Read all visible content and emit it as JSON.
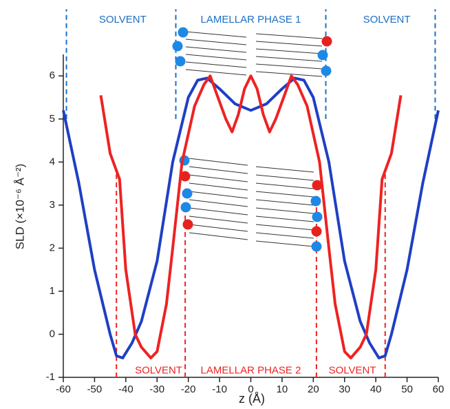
{
  "chart_data": {
    "type": "line",
    "xlabel": "z (Å)",
    "ylabel": "SLD (×10⁻⁶ Å⁻²)",
    "xlim": [
      -60,
      60
    ],
    "ylim": [
      -1,
      6.5
    ],
    "xticks": [
      -60,
      -50,
      -40,
      -30,
      -20,
      -10,
      0,
      10,
      20,
      30,
      40,
      50,
      60
    ],
    "yticks": [
      -1,
      0,
      1,
      2,
      3,
      4,
      5,
      6
    ],
    "series": [
      {
        "color": "#1f3fc4",
        "x": [
          -60,
          -55,
          -50,
          -45,
          -43,
          -41,
          -38,
          -35,
          -30,
          -25,
          -20,
          -17,
          -14,
          -10,
          -5,
          0,
          5,
          10,
          14,
          17,
          20,
          25,
          30,
          35,
          38,
          41,
          43,
          45,
          50,
          55,
          60
        ],
        "values": [
          5.2,
          3.5,
          1.5,
          0,
          -0.5,
          -0.55,
          -0.2,
          0.3,
          1.7,
          4,
          5.5,
          5.9,
          5.95,
          5.7,
          5.35,
          5.2,
          5.35,
          5.7,
          5.95,
          5.9,
          5.5,
          4,
          1.7,
          0.3,
          -0.2,
          -0.55,
          -0.5,
          0,
          1.5,
          3.5,
          5.2
        ]
      },
      {
        "color": "#ee2222",
        "x": [
          -48,
          -45,
          -42,
          -40,
          -37,
          -35,
          -32,
          -30,
          -27,
          -25,
          -22,
          -18,
          -15,
          -13,
          -11,
          -8,
          -6,
          -4,
          -2,
          0,
          2,
          4,
          6,
          8,
          11,
          13,
          15,
          18,
          22,
          25,
          27,
          30,
          32,
          35,
          37,
          40,
          42,
          45,
          48
        ],
        "values": [
          5.55,
          4.2,
          3.6,
          1.5,
          0,
          -0.3,
          -0.55,
          -0.4,
          0.7,
          2,
          4,
          5.3,
          5.8,
          6.0,
          5.6,
          5.0,
          4.7,
          5.1,
          5.7,
          6.0,
          5.7,
          5.1,
          4.7,
          5.0,
          5.6,
          6.0,
          5.8,
          5.3,
          4,
          2,
          0.7,
          -0.4,
          -0.55,
          -0.3,
          0,
          1.5,
          3.6,
          4.2,
          5.55
        ]
      }
    ],
    "vlines": [
      {
        "x": -59,
        "y": [
          5.0,
          7.55
        ],
        "color": "#1a6fc4"
      },
      {
        "x": -24,
        "y": [
          5.0,
          7.55
        ],
        "color": "#1a6fc4"
      },
      {
        "x": 24,
        "y": [
          5.0,
          7.55
        ],
        "color": "#1a6fc4"
      },
      {
        "x": 59,
        "y": [
          5.0,
          7.55
        ],
        "color": "#1a6fc4"
      },
      {
        "x": -43,
        "y": [
          -1,
          3.8
        ],
        "color": "#ee2222"
      },
      {
        "x": -21,
        "y": [
          -1,
          3.0
        ],
        "color": "#ee2222"
      },
      {
        "x": 21,
        "y": [
          -1,
          3.0
        ],
        "color": "#ee2222"
      },
      {
        "x": 43,
        "y": [
          -1,
          3.8
        ],
        "color": "#ee2222"
      }
    ],
    "annotations": [
      {
        "text": "SOLVENT",
        "x": -41,
        "y": 7.3,
        "color": "#1a6fc4"
      },
      {
        "text": "LAMELLAR PHASE 1",
        "x": 0,
        "y": 7.3,
        "color": "#1a6fc4"
      },
      {
        "text": "SOLVENT",
        "x": 43.5,
        "y": 7.3,
        "color": "#1a6fc4"
      },
      {
        "text": "SOLVENT",
        "x": -29.5,
        "y": -0.85,
        "color": "#ee2222"
      },
      {
        "text": "LAMELLAR PHASE 2",
        "x": 0,
        "y": -0.85,
        "color": "#ee2222"
      },
      {
        "text": "SOLVENT",
        "x": 32.5,
        "y": -0.85,
        "color": "#ee2222"
      }
    ]
  }
}
